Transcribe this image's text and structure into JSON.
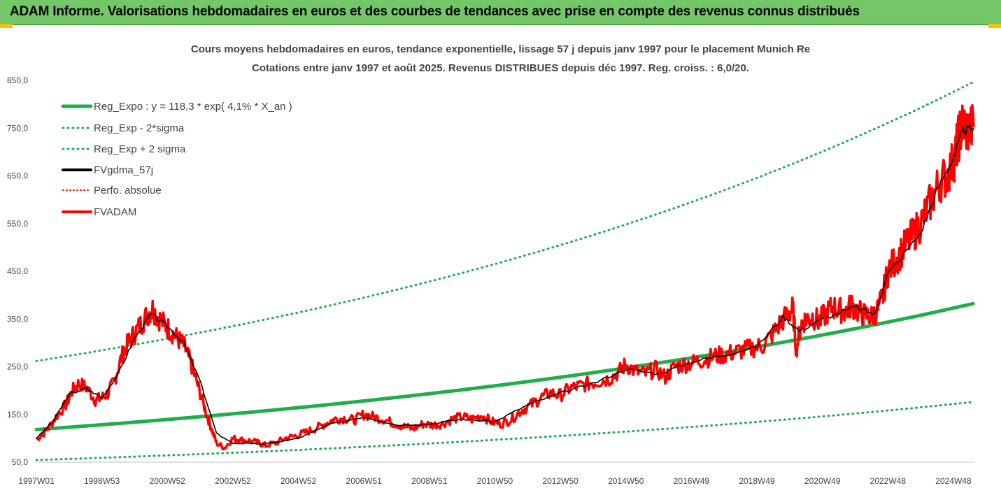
{
  "header": {
    "title": "ADAM Informe. Valorisations hebdomadaires en euros et des courbes de tendances avec prise en compte des revenus connus distribués"
  },
  "chart_data": {
    "type": "line",
    "title": "Cours moyens hebdomadaires en euros, tendance exponentielle, lissage 57 j depuis janv 1997 pour le placement Munich Re",
    "subtitle": "Cotations entre janv 1997 et août 2025. Revenus DISTRIBUES depuis déc 1997. Reg. croiss. : 6,0/20.",
    "xlabel": "",
    "ylabel": "",
    "x_range": [
      1997.0,
      2025.62
    ],
    "ylim": [
      50,
      850
    ],
    "yticks": [
      50,
      150,
      250,
      350,
      450,
      550,
      650,
      750,
      850
    ],
    "ytick_labels": [
      "50,0",
      "150,0",
      "250,0",
      "350,0",
      "450,0",
      "550,0",
      "650,0",
      "750,0",
      "850,0"
    ],
    "xticks": [
      1997.0,
      1999.0,
      2001.0,
      2003.0,
      2005.0,
      2007.0,
      2009.0,
      2011.0,
      2013.0,
      2015.0,
      2017.0,
      2019.0,
      2021.0,
      2023.0,
      2025.0
    ],
    "xtick_labels": [
      "1997W01",
      "1998W53",
      "2000W52",
      "2002W52",
      "2004W52",
      "2006W51",
      "2008W51",
      "2010W50",
      "2012W50",
      "2014W50",
      "2016W49",
      "2018W49",
      "2020W49",
      "2022W48",
      "2024W48"
    ],
    "grid": false,
    "legend_position": "top-left",
    "series": [
      {
        "name": "Reg_Expo : y = 118,3 * exp( 4,1% *  X_an )",
        "color": "#1fae4b",
        "style": "solid-thick",
        "x": [
          1997.0,
          2025.62
        ],
        "formula": "y = 118.3 * exp(0.041 * X_an)"
      },
      {
        "name": "Reg_Exp - 2*sigma",
        "color": "#1fae4b",
        "style": "dotted",
        "x": [
          1997.0,
          2025.62
        ],
        "formula": "y = 54.5 * exp(0.041 * X_an)"
      },
      {
        "name": "Reg_Exp + 2 sigma",
        "color": "#1fae4b",
        "style": "dotted",
        "x": [
          1997.0,
          2025.62
        ],
        "formula": "y = 262 * exp(0.041 * X_an)"
      },
      {
        "name": "FVgdma_57j",
        "color": "#000000",
        "style": "solid"
      },
      {
        "name": "Perfo. absolue",
        "color": "#ff0000",
        "style": "dotted"
      },
      {
        "name": "FVADAM",
        "color": "#ff0000",
        "style": "solid-thick",
        "x": [
          1997.0,
          1997.3,
          1997.6,
          1997.9,
          1998.1,
          1998.3,
          1998.55,
          1998.8,
          1999.0,
          1999.2,
          1999.4,
          1999.6,
          1999.8,
          2000.0,
          2000.2,
          2000.4,
          2000.55,
          2000.7,
          2000.9,
          2001.1,
          2001.3,
          2001.5,
          2001.65,
          2001.8,
          2002.0,
          2002.2,
          2002.35,
          2002.5,
          2002.75,
          2003.0,
          2003.2,
          2003.5,
          2003.8,
          2004.0,
          2004.3,
          2004.6,
          2004.9,
          2005.2,
          2005.5,
          2005.8,
          2006.1,
          2006.4,
          2006.7,
          2007.0,
          2007.3,
          2007.6,
          2007.9,
          2008.2,
          2008.5,
          2008.8,
          2009.1,
          2009.4,
          2009.7,
          2010.0,
          2010.3,
          2010.6,
          2010.9,
          2011.2,
          2011.5,
          2011.8,
          2012.1,
          2012.4,
          2012.7,
          2013.0,
          2013.3,
          2013.6,
          2013.9,
          2014.2,
          2014.5,
          2014.8,
          2015.0,
          2015.3,
          2015.6,
          2015.9,
          2016.2,
          2016.5,
          2016.8,
          2017.1,
          2017.4,
          2017.7,
          2018.0,
          2018.3,
          2018.6,
          2018.9,
          2019.2,
          2019.5,
          2019.75,
          2019.95,
          2020.1,
          2020.2,
          2020.35,
          2020.5,
          2020.7,
          2020.9,
          2021.1,
          2021.3,
          2021.5,
          2021.7,
          2021.9,
          2022.1,
          2022.3,
          2022.5,
          2022.7,
          2022.85,
          2023.0,
          2023.2,
          2023.4,
          2023.6,
          2023.8,
          2024.0,
          2024.2,
          2024.4,
          2024.6,
          2024.8,
          2025.0,
          2025.1,
          2025.2,
          2025.3,
          2025.45,
          2025.62
        ],
        "values": [
          98,
          115,
          145,
          170,
          200,
          215,
          205,
          180,
          185,
          195,
          225,
          270,
          300,
          320,
          340,
          360,
          372,
          355,
          340,
          325,
          310,
          295,
          270,
          240,
          195,
          150,
          120,
          90,
          80,
          100,
          97,
          95,
          90,
          85,
          90,
          100,
          105,
          112,
          120,
          130,
          140,
          142,
          138,
          150,
          145,
          140,
          132,
          125,
          120,
          130,
          128,
          130,
          140,
          145,
          140,
          148,
          135,
          130,
          140,
          158,
          170,
          185,
          195,
          190,
          205,
          210,
          215,
          220,
          225,
          240,
          255,
          240,
          235,
          245,
          228,
          250,
          255,
          260,
          265,
          272,
          275,
          280,
          285,
          290,
          295,
          320,
          345,
          360,
          372,
          285,
          340,
          350,
          355,
          345,
          360,
          375,
          370,
          365,
          380,
          365,
          358,
          355,
          370,
          400,
          450,
          470,
          490,
          510,
          530,
          550,
          580,
          610,
          640,
          650,
          680,
          710,
          740,
          760,
          745,
          752
        ]
      },
      {
        "name": "FVgdma_57j (smoothed)",
        "color": "#000000",
        "style": "solid",
        "x": [
          1997.0,
          1997.5,
          1998.0,
          1998.5,
          1999.0,
          1999.5,
          2000.0,
          2000.5,
          2001.0,
          2001.5,
          2002.0,
          2002.5,
          2003.0,
          2004.0,
          2005.0,
          2006.0,
          2007.0,
          2008.0,
          2009.0,
          2010.0,
          2011.0,
          2012.0,
          2013.0,
          2014.0,
          2015.0,
          2016.0,
          2017.0,
          2018.0,
          2019.0,
          2019.8,
          2020.3,
          2021.0,
          2022.0,
          2022.6,
          2023.0,
          2024.0,
          2024.5,
          2025.0,
          2025.3,
          2025.62
        ],
        "values": [
          100,
          135,
          192,
          205,
          185,
          235,
          310,
          360,
          335,
          300,
          220,
          110,
          90,
          88,
          100,
          130,
          145,
          128,
          130,
          140,
          135,
          170,
          195,
          215,
          245,
          235,
          260,
          275,
          292,
          355,
          325,
          350,
          375,
          360,
          445,
          530,
          620,
          690,
          745,
          750
        ]
      }
    ]
  }
}
